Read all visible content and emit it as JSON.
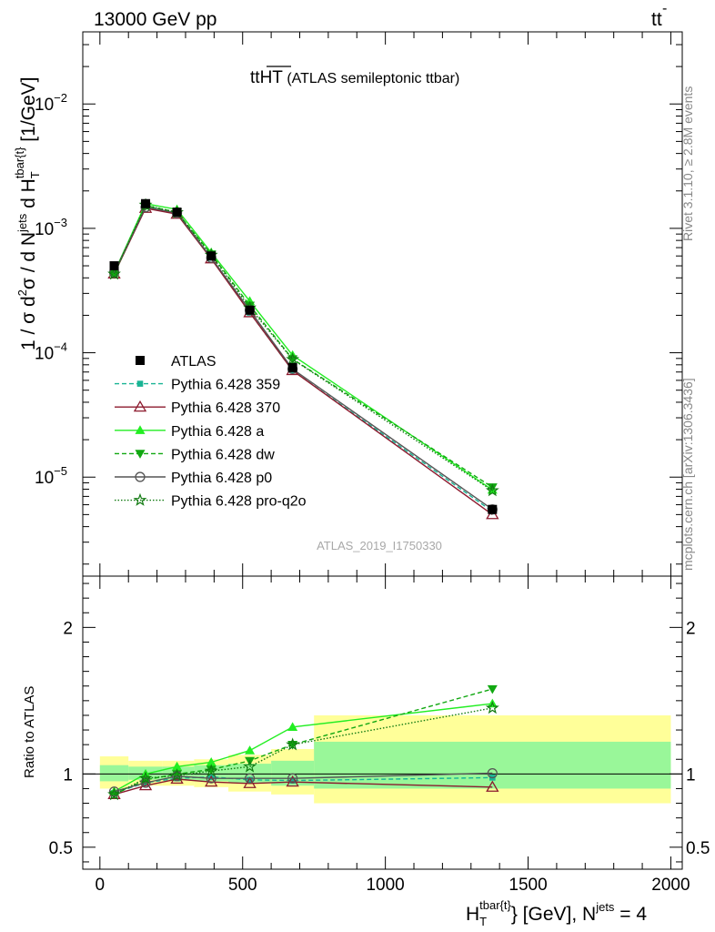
{
  "header": {
    "left": "13000 GeV pp",
    "right_main": "tt",
    "right_bar": "-"
  },
  "title": {
    "main": "tt",
    "overline": "HT",
    "suffix": " (ATLAS semileptonic ttbar)"
  },
  "side_texts": {
    "rivet": "Rivet 3.1.10, ≥ 2.8M events",
    "mcplots": "mcplots.cern.ch [arXiv:1306.3436]"
  },
  "watermark": "ATLAS_2019_I1750330",
  "ylabel": {
    "a": "1 / σ d",
    "a_sup": "2",
    "b": "σ / d N",
    "b_sup": "jets",
    "c": " d H",
    "c_sub": "T",
    "c_sup": "tbar{t}",
    "d": " [1/GeV]"
  },
  "xlabel": {
    "a": "H",
    "a_sub": "T",
    "a_sup": "tbar{t}",
    "b": "} [GeV], N",
    "b_sup": "jets",
    "c": " = 4"
  },
  "ratio_ylabel": "Ratio to ATLAS",
  "chart_data": [
    {
      "type": "line",
      "panel": "main",
      "log_y": true,
      "xlim": [
        -60,
        2040
      ],
      "ylim": [
        1.6e-06,
        0.038
      ],
      "y_ticks": [
        {
          "value": 1e-05,
          "base": "10",
          "exp": "−5"
        },
        {
          "value": 0.0001,
          "base": "10",
          "exp": "−4"
        },
        {
          "value": 0.001,
          "base": "10",
          "exp": "−3"
        },
        {
          "value": 0.01,
          "base": "10",
          "exp": "−2"
        }
      ],
      "x": [
        50,
        160,
        270,
        390,
        525,
        675,
        1375
      ],
      "data": {
        "name": "ATLAS",
        "values": [
          0.0005,
          0.00158,
          0.00135,
          0.0006,
          0.00022,
          7.6e-05,
          5.5e-06
        ]
      },
      "series": [
        {
          "name": "Pythia 6.428 359",
          "color": "#19b494",
          "dash": "5,3",
          "marker": "square",
          "values": [
            0.00044,
            0.0015,
            0.00132,
            0.00058,
            0.00021,
            7.2e-05,
            5.3e-06
          ]
        },
        {
          "name": "Pythia 6.428 370",
          "color": "#8c1a2e",
          "dash": "",
          "marker": "triangle-open",
          "values": [
            0.00043,
            0.00145,
            0.0013,
            0.00057,
            0.00021,
            7.2e-05,
            5e-06
          ]
        },
        {
          "name": "Pythia 6.428 a",
          "color": "#22ee22",
          "dash": "",
          "marker": "triangle",
          "values": [
            0.00044,
            0.00158,
            0.00142,
            0.00064,
            0.00026,
            9.55e-05,
            7.9e-06
          ]
        },
        {
          "name": "Pythia 6.428 dw",
          "color": "#11a811",
          "dash": "5,3",
          "marker": "triangle-down",
          "values": [
            0.00043,
            0.00152,
            0.00135,
            0.00062,
            0.00024,
            8.9e-05,
            8.3e-06
          ]
        },
        {
          "name": "Pythia 6.428 p0",
          "color": "#555555",
          "dash": "",
          "marker": "circle-open",
          "values": [
            0.00044,
            0.00148,
            0.00133,
            0.00058,
            0.00022,
            7.4e-05,
            5.5e-06
          ]
        },
        {
          "name": "Pythia 6.428 pro-q2o",
          "color": "#117a11",
          "dash": "1.5,2",
          "marker": "star",
          "values": [
            0.00043,
            0.00154,
            0.00134,
            0.00061,
            0.00023,
            8.85e-05,
            7.8e-06
          ]
        }
      ]
    },
    {
      "type": "line",
      "panel": "ratio",
      "xlim": [
        -60,
        2040
      ],
      "ylim": [
        0.35,
        2.35
      ],
      "x_ticks": [
        0,
        500,
        1000,
        1500,
        2000
      ],
      "y_ticks": [
        0.5,
        1,
        2
      ],
      "x": [
        50,
        160,
        270,
        390,
        525,
        675,
        1375
      ],
      "bands": [
        {
          "xmin": 0,
          "xmax": 100,
          "yellow": [
            0.9,
            1.12
          ],
          "green": [
            0.95,
            1.06
          ]
        },
        {
          "xmin": 100,
          "xmax": 220,
          "yellow": [
            0.92,
            1.09
          ],
          "green": [
            0.96,
            1.05
          ]
        },
        {
          "xmin": 220,
          "xmax": 330,
          "yellow": [
            0.92,
            1.09
          ],
          "green": [
            0.96,
            1.05
          ]
        },
        {
          "xmin": 330,
          "xmax": 450,
          "yellow": [
            0.91,
            1.1
          ],
          "green": [
            0.95,
            1.06
          ]
        },
        {
          "xmin": 450,
          "xmax": 600,
          "yellow": [
            0.88,
            1.13
          ],
          "green": [
            0.94,
            1.07
          ]
        },
        {
          "xmin": 600,
          "xmax": 750,
          "yellow": [
            0.86,
            1.17
          ],
          "green": [
            0.92,
            1.09
          ]
        },
        {
          "xmin": 750,
          "xmax": 2000,
          "yellow": [
            0.8,
            1.4
          ],
          "green": [
            0.9,
            1.22
          ]
        }
      ],
      "series": [
        {
          "name": "Pythia 6.428 359",
          "values": [
            0.87,
            0.94,
            0.97,
            0.98,
            0.96,
            0.955,
            0.975
          ]
        },
        {
          "name": "Pythia 6.428 370",
          "values": [
            0.86,
            0.92,
            0.965,
            0.945,
            0.935,
            0.945,
            0.91
          ]
        },
        {
          "name": "Pythia 6.428 a",
          "values": [
            0.88,
            1.0,
            1.05,
            1.08,
            1.16,
            1.32,
            1.48
          ]
        },
        {
          "name": "Pythia 6.428 dw",
          "values": [
            0.86,
            0.96,
            1.0,
            1.03,
            1.09,
            1.2,
            1.58
          ]
        },
        {
          "name": "Pythia 6.428 p0",
          "values": [
            0.88,
            0.94,
            0.985,
            0.97,
            0.97,
            0.97,
            1.005
          ]
        },
        {
          "name": "Pythia 6.428 pro-q2o",
          "values": [
            0.86,
            0.97,
            0.99,
            1.02,
            1.05,
            1.2,
            1.45
          ]
        }
      ]
    }
  ]
}
